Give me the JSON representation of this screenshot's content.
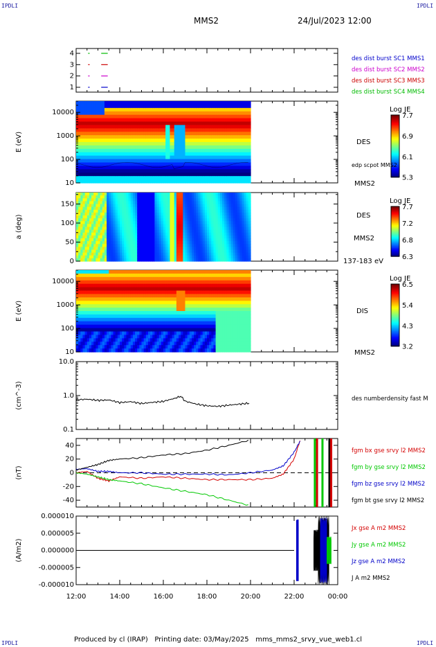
{
  "header": {
    "corner_label": "IPDLI",
    "title": "MMS2",
    "datetime": "24/Jul/2023 12:00"
  },
  "footer": {
    "produced_by": "Produced by cl (IRAP)",
    "printing_date": "Printing date: 03/May/2025",
    "script_name": "mms_mms2_srvy_vue_web1.cl"
  },
  "time_axis": {
    "start_hour": 12,
    "end_hour": 24,
    "tick_labels": [
      "12:00",
      "14:00",
      "16:00",
      "18:00",
      "20:00",
      "22:00",
      "00:00"
    ]
  },
  "colors": {
    "mms1": "#0000cc",
    "mms2": "#cc00cc",
    "mms3": "#cc0000",
    "mms4": "#00bb00",
    "bx": "#d40000",
    "by": "#00c800",
    "bz": "#0000c8",
    "bt": "#000000"
  },
  "chart_data": [
    {
      "type": "table",
      "name": "burst-availability",
      "yticks": [
        "4",
        "3",
        "2",
        "1"
      ],
      "legend": [
        "des dist burst SC1 MMS1",
        "des dist burst SC2 MMS2",
        "des dist burst SC3 MMS3",
        "des dist burst SC4 MMS4"
      ],
      "legend_colors": [
        "#0000cc",
        "#cc00cc",
        "#cc0000",
        "#00bb00"
      ],
      "rows": [
        {
          "level": 4,
          "color": "#00bb00",
          "intervals": [
            [
              12.55,
              12.62
            ],
            [
              13.15,
              13.45
            ]
          ]
        },
        {
          "level": 3,
          "color": "#cc0000",
          "intervals": [
            [
              12.55,
              12.62
            ],
            [
              13.15,
              13.45
            ]
          ]
        },
        {
          "level": 2,
          "color": "#cc00cc",
          "intervals": [
            [
              12.55,
              12.62
            ],
            [
              13.15,
              13.45
            ]
          ]
        },
        {
          "level": 1,
          "color": "#0000cc",
          "intervals": [
            [
              12.55,
              12.62
            ],
            [
              13.15,
              13.45
            ]
          ]
        }
      ]
    },
    {
      "type": "heatmap",
      "name": "des-energy-spectrogram",
      "ylabel": "E (eV)",
      "yscale": "log",
      "ylim": [
        10,
        30000
      ],
      "yticks": [
        "10000",
        "1000",
        "100",
        "10"
      ],
      "data_end_hour": 20.0,
      "side_labels": [
        "DES",
        "edp scpot MMS2",
        "MMS2"
      ],
      "colorbar": {
        "title": "Log JE",
        "ticks": [
          "7.7",
          "6.9",
          "6.1",
          "5.3"
        ],
        "range": [
          5.3,
          7.7
        ]
      }
    },
    {
      "type": "heatmap",
      "name": "des-pitch-angle",
      "ylabel": "a (deg)",
      "ylim": [
        0,
        180
      ],
      "yticks": [
        "150",
        "100",
        "50",
        "0"
      ],
      "data_end_hour": 20.0,
      "side_labels": [
        "DES",
        "MMS2",
        "137-183 eV"
      ],
      "colorbar": {
        "title": "Log JE",
        "ticks": [
          "7.7",
          "7.2",
          "6.8",
          "6.3"
        ],
        "range": [
          6.3,
          7.7
        ]
      }
    },
    {
      "type": "heatmap",
      "name": "dis-energy-spectrogram",
      "ylabel": "E (eV)",
      "yscale": "log",
      "ylim": [
        10,
        30000
      ],
      "yticks": [
        "10000",
        "1000",
        "100",
        "10"
      ],
      "data_end_hour": 20.0,
      "side_labels": [
        "DIS",
        "MMS2"
      ],
      "colorbar": {
        "title": "Log JE",
        "ticks": [
          "6.5",
          "5.4",
          "4.3",
          "3.2"
        ],
        "range": [
          3.2,
          6.5
        ]
      }
    },
    {
      "type": "line",
      "name": "des-numberdensity",
      "ylabel": "(cm^-3)",
      "yscale": "log",
      "ylim": [
        0.1,
        10
      ],
      "yticks": [
        "10.0",
        "1.0",
        "0.1"
      ],
      "legend": [
        "des numberdensity fast M"
      ],
      "x": [
        12.0,
        12.5,
        13.0,
        13.5,
        14.0,
        14.5,
        15.0,
        15.5,
        16.0,
        16.5,
        16.8,
        17.0,
        17.5,
        18.0,
        18.5,
        19.0,
        19.5,
        20.0
      ],
      "y": [
        0.75,
        0.78,
        0.72,
        0.74,
        0.62,
        0.66,
        0.58,
        0.63,
        0.67,
        0.82,
        0.95,
        0.68,
        0.56,
        0.5,
        0.48,
        0.52,
        0.56,
        0.6
      ]
    },
    {
      "type": "line",
      "name": "fgm-magnetic-field",
      "ylabel": "(nT)",
      "ylim": [
        -50,
        50
      ],
      "yticks": [
        "40",
        "20",
        "0",
        "-20",
        "-40"
      ],
      "legend": [
        "fgm bx gse srvy l2 MMS2",
        "fgm by gse srvy l2 MMS2",
        "fgm bz gse srvy l2 MMS2",
        "fgm bt gse srvy l2 MMS2"
      ],
      "x": [
        12.0,
        12.5,
        13.0,
        13.5,
        14.0,
        15.0,
        16.0,
        17.0,
        18.0,
        19.0,
        20.0,
        21.0,
        21.5,
        22.0,
        22.3
      ],
      "series": [
        {
          "name": "fgm bx gse srvy l2 MMS2",
          "color": "#d40000",
          "values": [
            0,
            2,
            -8,
            -12,
            -6,
            -8,
            -6,
            -8,
            -10,
            -10,
            -10,
            -8,
            -2,
            20,
            50
          ]
        },
        {
          "name": "fgm by gse srvy l2 MMS2",
          "color": "#00c800",
          "values": [
            0,
            -2,
            -6,
            -10,
            -12,
            -16,
            -22,
            -27,
            -32,
            -40,
            -48,
            null,
            null,
            null,
            null
          ]
        },
        {
          "name": "fgm bz gse srvy l2 MMS2",
          "color": "#0000c8",
          "values": [
            5,
            6,
            2,
            2,
            0,
            0,
            -2,
            -2,
            -2,
            -3,
            0,
            4,
            10,
            30,
            48
          ]
        },
        {
          "name": "fgm bt gse srvy l2 MMS2",
          "color": "#000000",
          "values": [
            4,
            8,
            12,
            18,
            20,
            22,
            26,
            28,
            33,
            40,
            48,
            null,
            null,
            null,
            null
          ]
        }
      ],
      "late_spikes": [
        {
          "hour": 22.95,
          "color": "#00c800"
        },
        {
          "hour": 23.05,
          "color": "#d40000"
        },
        {
          "hour": 23.3,
          "color": "#00c800"
        },
        {
          "hour": 23.62,
          "color": "#000000"
        },
        {
          "hour": 23.7,
          "color": "#d40000"
        }
      ]
    },
    {
      "type": "line",
      "name": "current-density",
      "ylabel": "(A/m2)",
      "ylim": [
        -1e-05,
        1e-05
      ],
      "yticks": [
        "0.000010",
        "0.000005",
        "0.000000",
        "-0.000005",
        "-0.000010"
      ],
      "legend": [
        "Jx gse A m2 MMS2",
        "Jy gse A m2 MMS2",
        "Jz gse A m2 MMS2",
        "J A m2 MMS2"
      ],
      "legend_colors": [
        "#d40000",
        "#00c800",
        "#0000c8",
        "#000000"
      ],
      "baseline_until_hour": 22.0,
      "bursts": [
        {
          "from": 22.1,
          "to": 22.2,
          "amp": 9e-06,
          "color": "#0000c8"
        },
        {
          "from": 22.9,
          "to": 23.1,
          "amp": 6e-06,
          "color": "#000000"
        },
        {
          "from": 23.1,
          "to": 23.6,
          "amp": 1e-05,
          "color": "#000000"
        },
        {
          "from": 23.2,
          "to": 23.5,
          "amp": 9.5e-06,
          "color": "#0000c8"
        },
        {
          "from": 23.5,
          "to": 23.7,
          "amp": 4e-06,
          "color": "#00c800"
        }
      ]
    }
  ]
}
